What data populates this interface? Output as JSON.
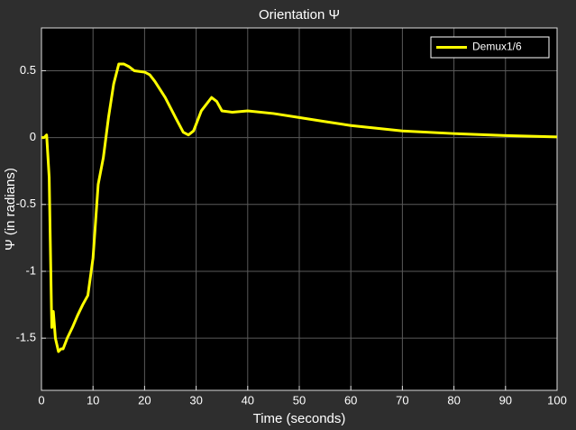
{
  "chart_data": {
    "type": "line",
    "title": "Orientation Ψ",
    "xlabel": "Time (seconds)",
    "ylabel": "Ψ  (in radians)",
    "x": [
      0,
      0.5,
      1,
      1.5,
      2,
      2.3,
      2.7,
      3.3,
      3.8,
      4.2,
      5,
      6,
      7,
      8,
      9,
      10,
      11,
      12,
      13,
      14,
      15,
      16,
      17,
      18,
      20,
      21,
      22,
      24,
      26,
      27.5,
      28.5,
      29.5,
      31,
      33,
      34,
      35,
      37,
      40,
      45,
      50,
      55,
      60,
      70,
      80,
      90,
      100
    ],
    "series": [
      {
        "name": "Demux1/6",
        "color": "#ffff00",
        "values": [
          0,
          0,
          0.02,
          -0.3,
          -1.42,
          -1.3,
          -1.5,
          -1.6,
          -1.58,
          -1.58,
          -1.5,
          -1.42,
          -1.33,
          -1.25,
          -1.18,
          -0.9,
          -0.35,
          -0.15,
          0.15,
          0.4,
          0.55,
          0.55,
          0.53,
          0.5,
          0.49,
          0.47,
          0.42,
          0.3,
          0.15,
          0.04,
          0.02,
          0.05,
          0.2,
          0.3,
          0.27,
          0.2,
          0.19,
          0.2,
          0.18,
          0.15,
          0.12,
          0.09,
          0.05,
          0.03,
          0.015,
          0.005
        ]
      }
    ],
    "xlim": [
      0,
      100
    ],
    "ylim": [
      -1.89,
      0.82
    ],
    "xticks": [
      0,
      10,
      20,
      30,
      40,
      50,
      60,
      70,
      80,
      90,
      100
    ],
    "yticks": [
      -1.5,
      -1,
      -0.5,
      0,
      0.5
    ],
    "grid": true,
    "legend": "top-right"
  }
}
